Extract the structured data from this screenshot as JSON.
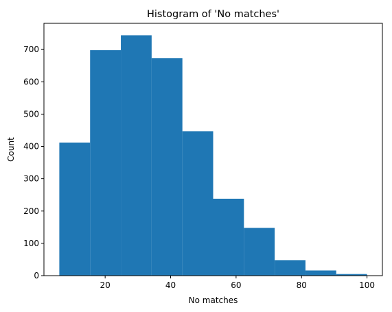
{
  "chart_data": {
    "type": "bar",
    "title": "Histogram of 'No matches'",
    "xlabel": "No matches",
    "ylabel": "Count",
    "bins": [
      {
        "x0": 6.0,
        "x1": 15.4,
        "count": 412
      },
      {
        "x0": 15.4,
        "x1": 24.8,
        "count": 698
      },
      {
        "x0": 24.8,
        "x1": 34.2,
        "count": 744
      },
      {
        "x0": 34.2,
        "x1": 43.6,
        "count": 673
      },
      {
        "x0": 43.6,
        "x1": 53.0,
        "count": 447
      },
      {
        "x0": 53.0,
        "x1": 62.4,
        "count": 238
      },
      {
        "x0": 62.4,
        "x1": 71.8,
        "count": 148
      },
      {
        "x0": 71.8,
        "x1": 81.2,
        "count": 48
      },
      {
        "x0": 81.2,
        "x1": 90.6,
        "count": 16
      },
      {
        "x0": 90.6,
        "x1": 100.0,
        "count": 5
      }
    ],
    "xlim": [
      1.3,
      104.7
    ],
    "ylim": [
      0,
      781
    ],
    "xticks": [
      20,
      40,
      60,
      80,
      100
    ],
    "yticks": [
      0,
      100,
      200,
      300,
      400,
      500,
      600,
      700
    ],
    "grid": false,
    "bar_color": "#1f77b4"
  }
}
